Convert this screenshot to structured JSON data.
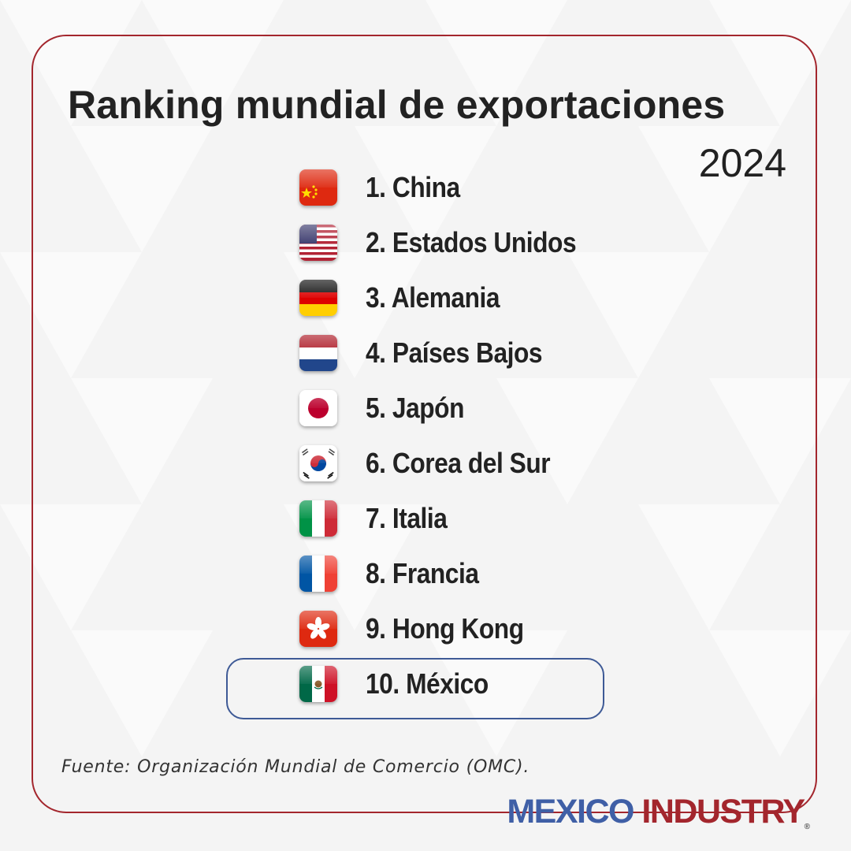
{
  "title": "Ranking mundial de exportaciones",
  "year": "2024",
  "ranking": [
    {
      "label": "1. China",
      "flag": "china-flag"
    },
    {
      "label": "2. Estados Unidos",
      "flag": "usa-flag"
    },
    {
      "label": "3. Alemania",
      "flag": "germany-flag"
    },
    {
      "label": "4. Países Bajos",
      "flag": "netherlands-flag"
    },
    {
      "label": "5. Japón",
      "flag": "japan-flag"
    },
    {
      "label": "6. Corea del Sur",
      "flag": "south-korea-flag"
    },
    {
      "label": "7. Italia",
      "flag": "italy-flag"
    },
    {
      "label": "8. Francia",
      "flag": "france-flag"
    },
    {
      "label": "9. Hong Kong",
      "flag": "hong-kong-flag"
    },
    {
      "label": "10. México",
      "flag": "mexico-flag"
    }
  ],
  "highlighted_rank": "10",
  "source": "Fuente: Organización Mundial de Comercio (OMC).",
  "brand": {
    "part1": "MEXICO",
    "part2": "INDUSTRY",
    "mark": "®"
  },
  "colors": {
    "frame": "#a3262d",
    "highlight": "#3e5a96",
    "brand_blue": "#3f5fa6",
    "brand_red": "#a3262d"
  }
}
